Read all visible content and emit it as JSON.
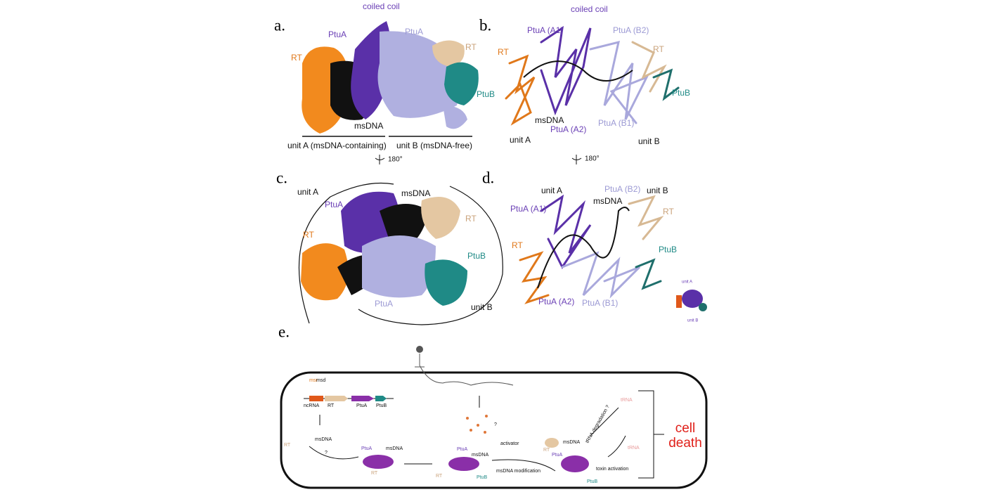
{
  "panels": {
    "a": {
      "letter": "a.",
      "labels": [
        "coiled coil",
        "PtuA",
        "PtuA",
        "RT",
        "RT",
        "PtuB",
        "msDNA",
        "unit A (msDNA-containing)",
        "unit B (msDNA-free)",
        "180°"
      ]
    },
    "b": {
      "letter": "b.",
      "labels": [
        "coiled coil",
        "PtuA (A1)",
        "PtuA (B2)",
        "RT",
        "RT",
        "PtuB",
        "msDNA",
        "PtuA (A2)",
        "PtuA (B1)",
        "unit A",
        "unit B",
        "180°"
      ]
    },
    "c": {
      "letter": "c.",
      "labels": [
        "unit A",
        "msDNA",
        "PtuA",
        "RT",
        "RT",
        "PtuB",
        "PtuA",
        "unit B"
      ]
    },
    "d": {
      "letter": "d.",
      "labels": [
        "unit A",
        "PtuA (B2)",
        "unit B",
        "PtuA (A1)",
        "msDNA",
        "RT",
        "RT",
        "PtuB",
        "PtuA (A2)",
        "PtuA (B1)",
        "unit A",
        "unit B"
      ]
    },
    "e": {
      "letter": "e.",
      "labels": [
        "msr",
        "msd",
        "ncRNA",
        "RT",
        "PtuA",
        "PtuB",
        "msDNA",
        "?",
        "RT",
        "PtuA",
        "msDNA",
        "RT",
        "PtuA",
        "msDNA",
        "RT",
        "PtuB",
        "activator",
        "?",
        "msDNA modification",
        "msDNA",
        "RT",
        "PtuA",
        "PtuB",
        "toxin activation",
        "tRNA degradation ?",
        "tRNA",
        "tRNA",
        "cell",
        "death"
      ]
    }
  }
}
